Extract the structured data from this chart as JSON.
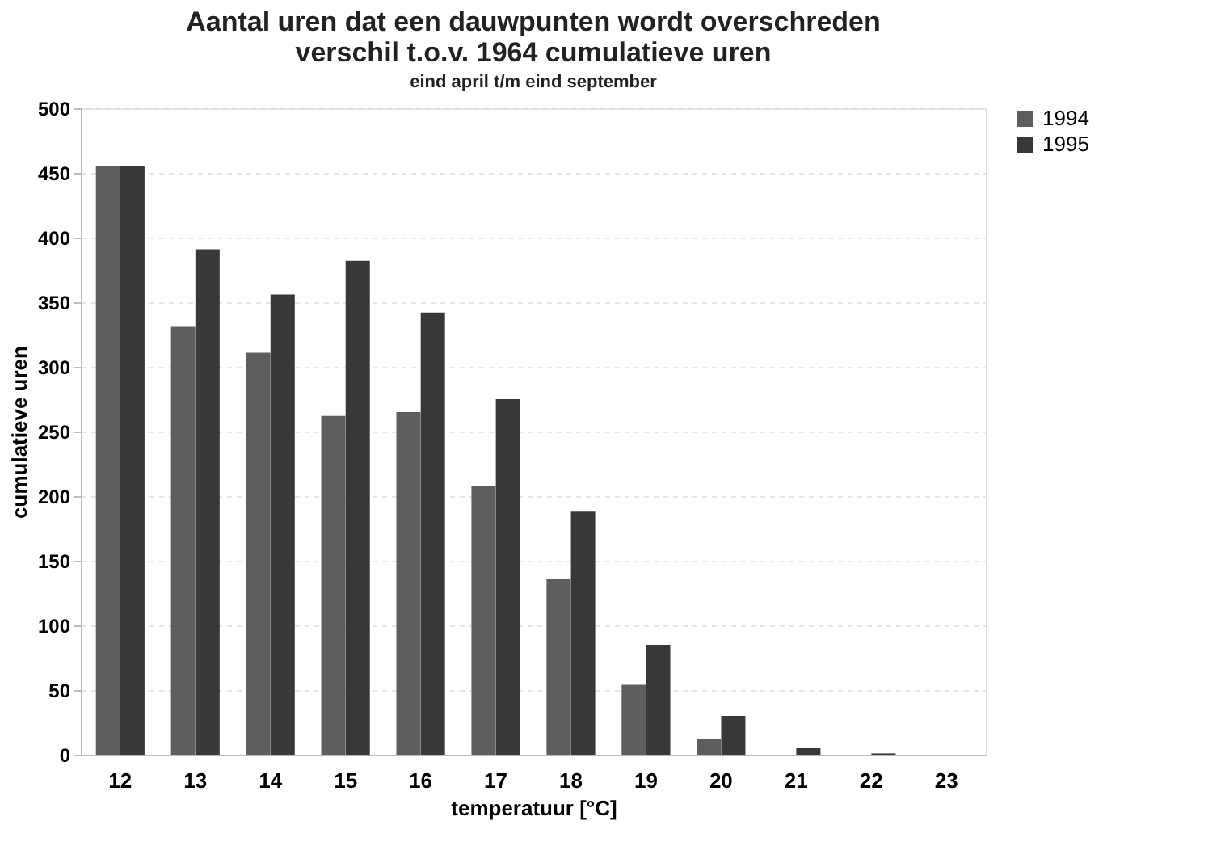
{
  "chart_data": {
    "type": "bar",
    "title": [
      "Aantal uren dat een dauwpunten wordt overschreden",
      "verschil t.o.v. 1964    cumulatieve uren"
    ],
    "subtitle": "eind april t/m eind september",
    "xlabel": "temperatuur [°C]",
    "ylabel": "cumulatieve uren",
    "categories": [
      "12",
      "13",
      "14",
      "15",
      "16",
      "17",
      "18",
      "19",
      "20",
      "21",
      "22",
      "23"
    ],
    "series": [
      {
        "name": "1994",
        "color": "#5e5e5e",
        "values": [
          455,
          331,
          311,
          262,
          265,
          208,
          136,
          54,
          12,
          0,
          0,
          0
        ]
      },
      {
        "name": "1995",
        "color": "#383838",
        "values": [
          455,
          391,
          356,
          382,
          342,
          275,
          188,
          85,
          30,
          5,
          1,
          0
        ]
      }
    ],
    "ylim": [
      0,
      500
    ],
    "yticks": [
      0,
      50,
      100,
      150,
      200,
      250,
      300,
      350,
      400,
      450,
      500
    ],
    "grid": "y",
    "legend": "right"
  }
}
